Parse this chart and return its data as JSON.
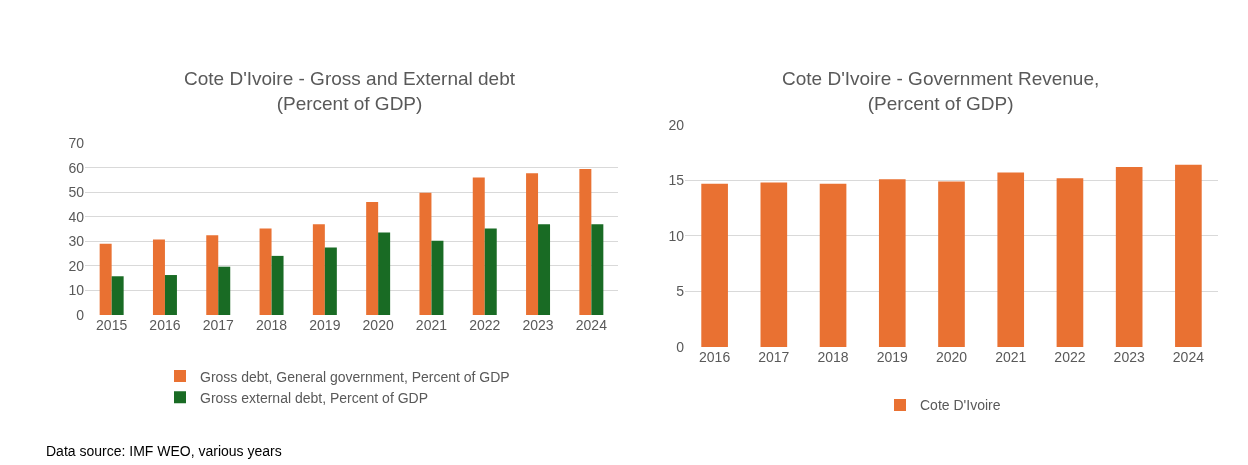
{
  "chart_data": [
    {
      "type": "bar",
      "title": "Cote D'Ivoire - Gross and External debt\n(Percent of GDP)",
      "categories": [
        "2015",
        "2016",
        "2017",
        "2018",
        "2019",
        "2020",
        "2021",
        "2022",
        "2023",
        "2024"
      ],
      "series": [
        {
          "name": "Gross debt, General government, Percent of GDP",
          "color": "#e97132",
          "values": [
            29.0,
            30.8,
            32.5,
            35.3,
            37.0,
            46.0,
            49.8,
            56.0,
            57.8,
            59.5
          ]
        },
        {
          "name": "Gross external debt, Percent of GDP",
          "color": "#196b24",
          "values": [
            15.8,
            16.3,
            19.7,
            24.1,
            27.5,
            33.6,
            30.3,
            35.3,
            37.0,
            37.0
          ]
        }
      ],
      "ylim": [
        0,
        70
      ],
      "yticks": [
        0,
        10,
        20,
        30,
        40,
        50,
        60,
        70
      ],
      "grid": "y",
      "legend": "bottom",
      "annotations": [
        "Data source: IMF WEO, various years"
      ]
    },
    {
      "type": "bar",
      "title": "Cote D'Ivoire - Government Revenue,\n(Percent of GDP)",
      "categories": [
        "2016",
        "2017",
        "2018",
        "2019",
        "2020",
        "2021",
        "2022",
        "2023",
        "2024"
      ],
      "series": [
        {
          "name": "Cote D'Ivoire",
          "color": "#e97132",
          "values": [
            14.7,
            14.8,
            14.7,
            15.1,
            14.9,
            15.7,
            15.2,
            16.2,
            16.4
          ]
        }
      ],
      "ylim": [
        0,
        20
      ],
      "yticks": [
        0,
        5,
        10,
        15,
        20
      ],
      "grid": "y",
      "legend": "bottom"
    }
  ]
}
